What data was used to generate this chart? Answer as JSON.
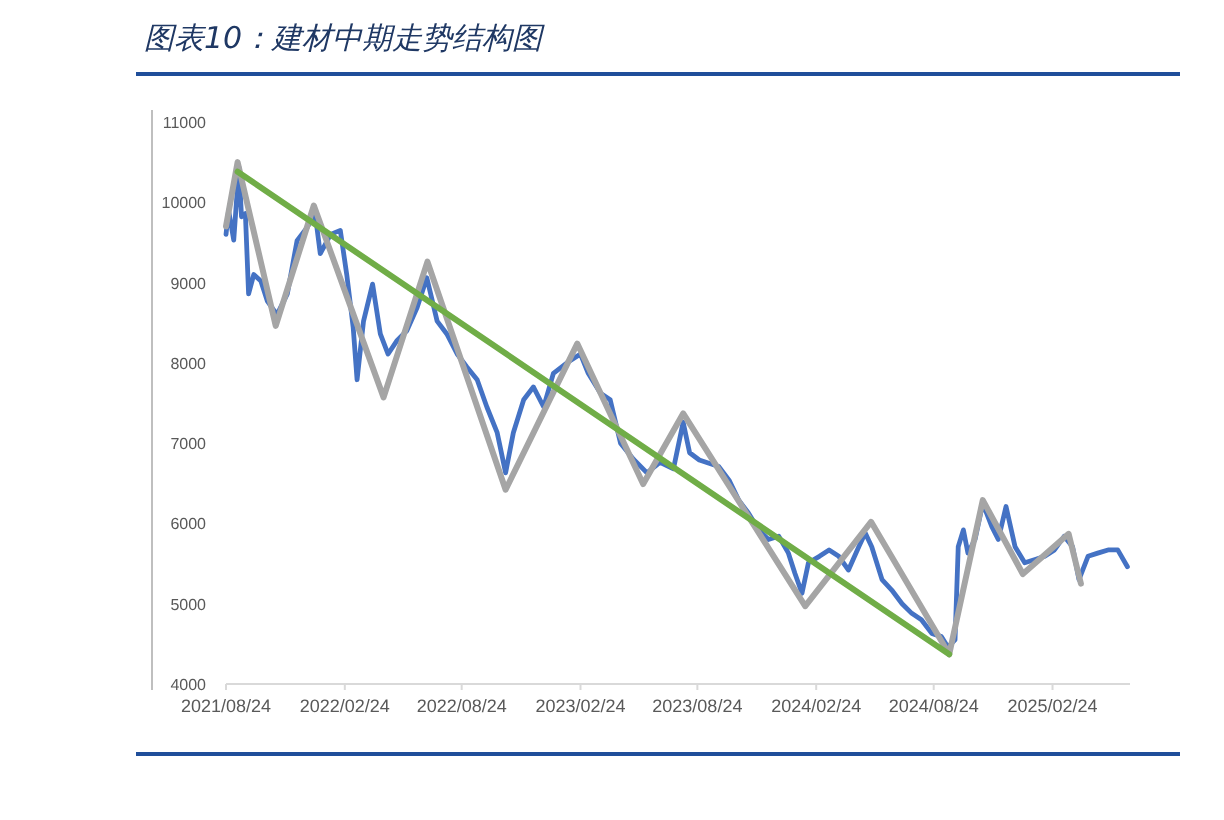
{
  "chart_data": {
    "type": "line",
    "title": "图表10：建材中期走势结构图",
    "xlim": [
      "2021-08-24",
      "2025-06-24"
    ],
    "ylim": [
      4000,
      11000
    ],
    "xticks": [
      {
        "value": "2021-08-24",
        "label": "2021/08/24"
      },
      {
        "value": "2022-02-24",
        "label": "2022/02/24"
      },
      {
        "value": "2022-08-24",
        "label": "2022/08/24"
      },
      {
        "value": "2023-02-24",
        "label": "2023/02/24"
      },
      {
        "value": "2023-08-24",
        "label": "2023/08/24"
      },
      {
        "value": "2024-02-24",
        "label": "2024/02/24"
      },
      {
        "value": "2024-08-24",
        "label": "2024/08/24"
      },
      {
        "value": "2025-02-24",
        "label": "2025/02/24"
      }
    ],
    "yticks": [
      4000,
      5000,
      6000,
      7000,
      8000,
      9000,
      10000,
      11000
    ],
    "grid": false,
    "series": [
      {
        "color": "#4472c4",
        "x": [
          "2021-08-24",
          "2021-08-28",
          "2021-09-05",
          "2021-09-13",
          "2021-09-17",
          "2021-09-23",
          "2021-09-28",
          "2021-10-06",
          "2021-10-17",
          "2021-10-27",
          "2021-11-11",
          "2021-11-27",
          "2021-12-12",
          "2021-12-28",
          "2022-01-09",
          "2022-01-17",
          "2022-02-02",
          "2022-02-17",
          "2022-02-27",
          "2022-03-09",
          "2022-03-15",
          "2022-03-25",
          "2022-04-08",
          "2022-04-20",
          "2022-05-02",
          "2022-05-16",
          "2022-05-31",
          "2022-06-16",
          "2022-07-01",
          "2022-07-17",
          "2022-08-01",
          "2022-08-17",
          "2022-09-01",
          "2022-09-17",
          "2022-10-02",
          "2022-10-18",
          "2022-10-31",
          "2022-11-12",
          "2022-11-28",
          "2022-12-13",
          "2022-12-29",
          "2023-01-13",
          "2023-02-03",
          "2023-02-24",
          "2023-03-08",
          "2023-03-27",
          "2023-04-11",
          "2023-04-27",
          "2023-05-17",
          "2023-06-07",
          "2023-06-27",
          "2023-07-18",
          "2023-08-02",
          "2023-08-12",
          "2023-08-27",
          "2023-09-11",
          "2023-09-26",
          "2023-10-12",
          "2023-10-27",
          "2023-11-11",
          "2023-11-27",
          "2023-12-12",
          "2023-12-28",
          "2024-01-12",
          "2024-01-22",
          "2024-02-02",
          "2024-02-12",
          "2024-02-29",
          "2024-03-15",
          "2024-03-30",
          "2024-04-14",
          "2024-04-30",
          "2024-05-10",
          "2024-05-20",
          "2024-06-05",
          "2024-06-20",
          "2024-07-06",
          "2024-07-21",
          "2024-08-05",
          "2024-08-21",
          "2024-09-05",
          "2024-09-15",
          "2024-09-26",
          "2024-10-01",
          "2024-10-09",
          "2024-10-16",
          "2024-10-27",
          "2024-11-08",
          "2024-11-22",
          "2024-12-02",
          "2024-12-14",
          "2024-12-28",
          "2025-01-12",
          "2025-01-28",
          "2025-02-12",
          "2025-02-27",
          "2025-03-14",
          "2025-03-27",
          "2025-04-06",
          "2025-04-20",
          "2025-05-05",
          "2025-05-21",
          "2025-06-05",
          "2025-06-20"
        ],
        "values": [
          9600,
          9900,
          9530,
          10440,
          9820,
          9860,
          8860,
          9100,
          9020,
          8770,
          8600,
          8860,
          9520,
          9690,
          9860,
          9360,
          9600,
          9650,
          9100,
          8440,
          7790,
          8520,
          8980,
          8360,
          8110,
          8280,
          8400,
          8690,
          9060,
          8520,
          8360,
          8110,
          7950,
          7790,
          7450,
          7130,
          6630,
          7130,
          7540,
          7700,
          7450,
          7870,
          8000,
          8110,
          7870,
          7620,
          7540,
          7000,
          6800,
          6630,
          6760,
          6680,
          7260,
          6880,
          6790,
          6750,
          6710,
          6540,
          6290,
          6130,
          5920,
          5800,
          5840,
          5630,
          5380,
          5130,
          5510,
          5590,
          5670,
          5590,
          5420,
          5710,
          5880,
          5710,
          5300,
          5170,
          5000,
          4880,
          4800,
          4630,
          4590,
          4460,
          4550,
          5710,
          5920,
          5630,
          5800,
          6250,
          5960,
          5800,
          6210,
          5710,
          5510,
          5550,
          5590,
          5670,
          5840,
          5710,
          5300,
          5590,
          5630,
          5670,
          5670,
          5460
        ]
      },
      {
        "color": "#a5a5a5",
        "x": [
          "2021-08-24",
          "2021-09-11",
          "2021-11-09",
          "2022-01-07",
          "2022-04-25",
          "2022-07-02",
          "2022-10-31",
          "2023-02-19",
          "2023-06-01",
          "2023-08-02",
          "2024-02-07",
          "2024-05-19",
          "2024-09-17",
          "2024-11-08",
          "2025-01-09",
          "2025-03-21",
          "2025-04-09"
        ],
        "values": [
          9700,
          10500,
          8460,
          9960,
          7570,
          9260,
          6420,
          8240,
          6490,
          7370,
          4970,
          6020,
          4370,
          6290,
          5370,
          5870,
          5250
        ]
      },
      {
        "color": "#70ad47",
        "x": [
          "2021-09-11",
          "2024-09-17"
        ],
        "values": [
          10380,
          4370
        ]
      }
    ]
  }
}
